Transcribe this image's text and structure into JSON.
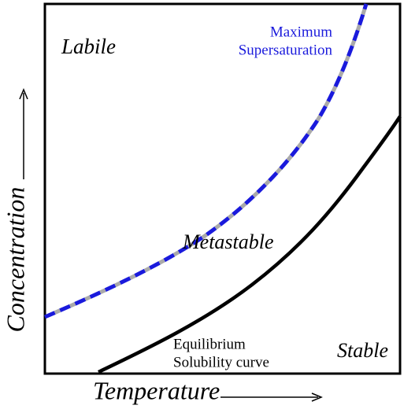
{
  "regions": {
    "labile": "Labile",
    "metastable": "Metastable",
    "stable": "Stable"
  },
  "curves": {
    "maximum_supersaturation": [
      "Maximum",
      "Supersaturation"
    ],
    "equilibrium": [
      "Equilibrium",
      "Solubility curve"
    ]
  },
  "axes": {
    "y": "Concentration",
    "x": "Temperature"
  }
}
